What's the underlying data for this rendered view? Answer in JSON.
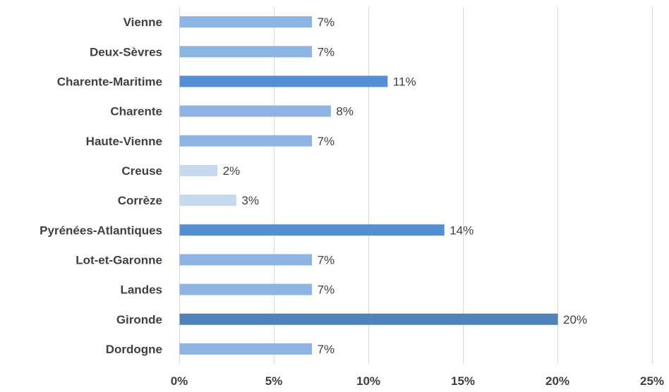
{
  "chart_data": {
    "type": "bar",
    "orientation": "horizontal",
    "categories": [
      "Vienne",
      "Deux-Sèvres",
      "Charente-Maritime",
      "Charente",
      "Haute-Vienne",
      "Creuse",
      "Corrèze",
      "Pyrénées-Atlantiques",
      "Lot-et-Garonne",
      "Landes",
      "Gironde",
      "Dordogne"
    ],
    "values": [
      7,
      7,
      11,
      8,
      7,
      2,
      3,
      14,
      7,
      7,
      20,
      7
    ],
    "data_labels": [
      "7%",
      "7%",
      "11%",
      "8%",
      "7%",
      "2%",
      "3%",
      "14%",
      "7%",
      "7%",
      "20%",
      "7%"
    ],
    "bar_colors": [
      "#8eb4e3",
      "#8eb4e3",
      "#558ed5",
      "#8eb4e3",
      "#8eb4e3",
      "#c6d9f1",
      "#c6d9f1",
      "#558ed5",
      "#8eb4e3",
      "#8eb4e3",
      "#4f81bd",
      "#8eb4e3"
    ],
    "xlim": [
      0,
      25
    ],
    "xticks": [
      0,
      5,
      10,
      15,
      20,
      25
    ],
    "xtick_labels": [
      "0%",
      "5%",
      "10%",
      "15%",
      "20%",
      "25%"
    ],
    "title": "",
    "xlabel": "",
    "ylabel": "",
    "grid": "vertical",
    "legend": "none"
  },
  "colors": {
    "text": "#404040",
    "gridline": "#d9d9d9",
    "background": "#ffffff"
  }
}
